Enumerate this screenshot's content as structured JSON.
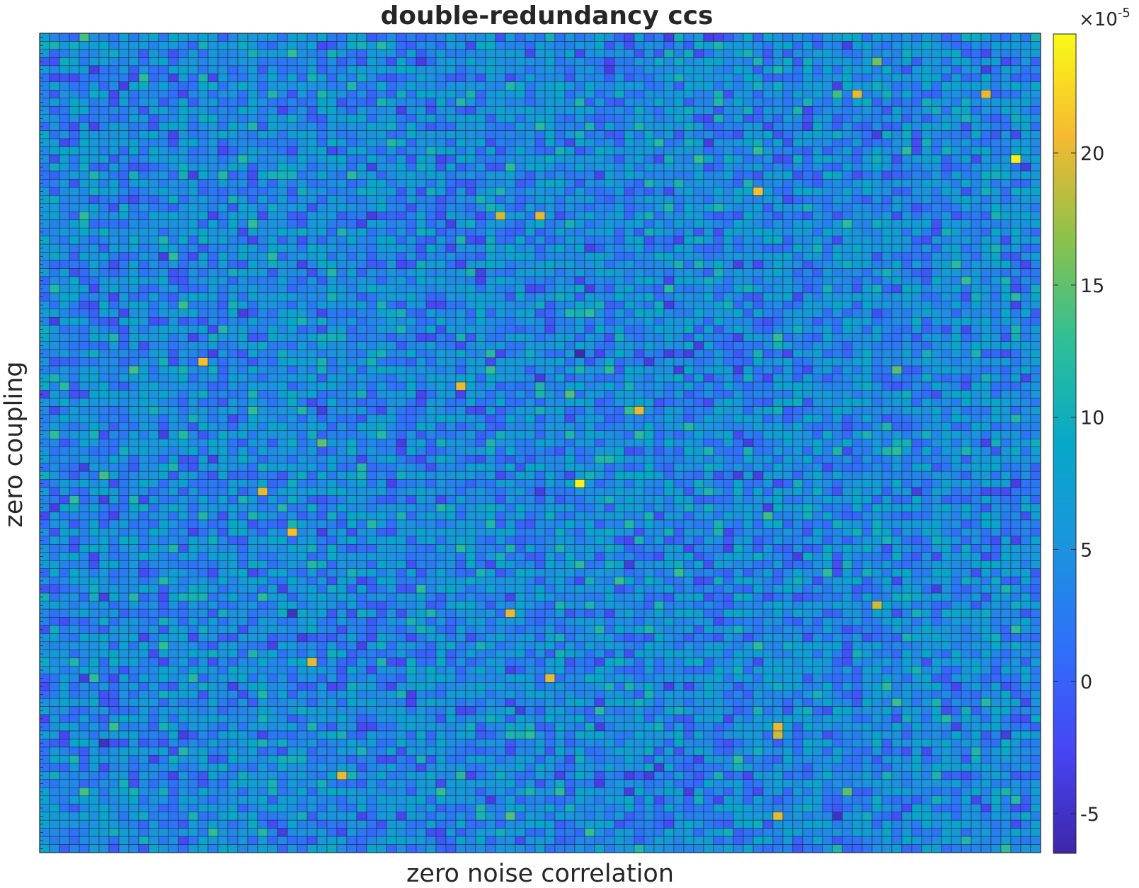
{
  "chart_data": {
    "type": "heatmap",
    "title": "double-redundancy ccs",
    "xlabel": "zero noise correlation",
    "ylabel": "zero coupling",
    "rows": 101,
    "cols": 101,
    "colormap": "parula",
    "colorbar": {
      "exponent_label": "×10",
      "exponent": "-5",
      "ticks": [
        -5,
        0,
        5,
        10,
        15,
        20
      ],
      "tick_labels": [
        "-5",
        "0",
        "5",
        "10",
        "15",
        "20"
      ],
      "range": [
        -6.5,
        24.5
      ]
    },
    "value_scale": "1e-5",
    "distribution": {
      "mean": 4.5,
      "std": 3.2
    },
    "outliers": [
      {
        "row": 7,
        "col": 82,
        "value": 20
      },
      {
        "row": 7,
        "col": 95,
        "value": 20
      },
      {
        "row": 15,
        "col": 98,
        "value": 24
      },
      {
        "row": 19,
        "col": 72,
        "value": 21
      },
      {
        "row": 22,
        "col": 46,
        "value": 19
      },
      {
        "row": 22,
        "col": 50,
        "value": 20
      },
      {
        "row": 40,
        "col": 16,
        "value": 21
      },
      {
        "row": 43,
        "col": 42,
        "value": 20
      },
      {
        "row": 46,
        "col": 60,
        "value": 20
      },
      {
        "row": 55,
        "col": 54,
        "value": 24
      },
      {
        "row": 56,
        "col": 22,
        "value": 20
      },
      {
        "row": 61,
        "col": 25,
        "value": 21
      },
      {
        "row": 70,
        "col": 84,
        "value": 19
      },
      {
        "row": 71,
        "col": 47,
        "value": 20
      },
      {
        "row": 77,
        "col": 27,
        "value": 20
      },
      {
        "row": 79,
        "col": 51,
        "value": 20
      },
      {
        "row": 85,
        "col": 74,
        "value": 20
      },
      {
        "row": 86,
        "col": 74,
        "value": 19
      },
      {
        "row": 91,
        "col": 30,
        "value": 20
      },
      {
        "row": 96,
        "col": 74,
        "value": 20
      },
      {
        "row": 39,
        "col": 54,
        "value": -6
      },
      {
        "row": 71,
        "col": 25,
        "value": -5
      },
      {
        "row": 87,
        "col": 6,
        "value": -5
      },
      {
        "row": 96,
        "col": 80,
        "value": -5
      }
    ]
  }
}
